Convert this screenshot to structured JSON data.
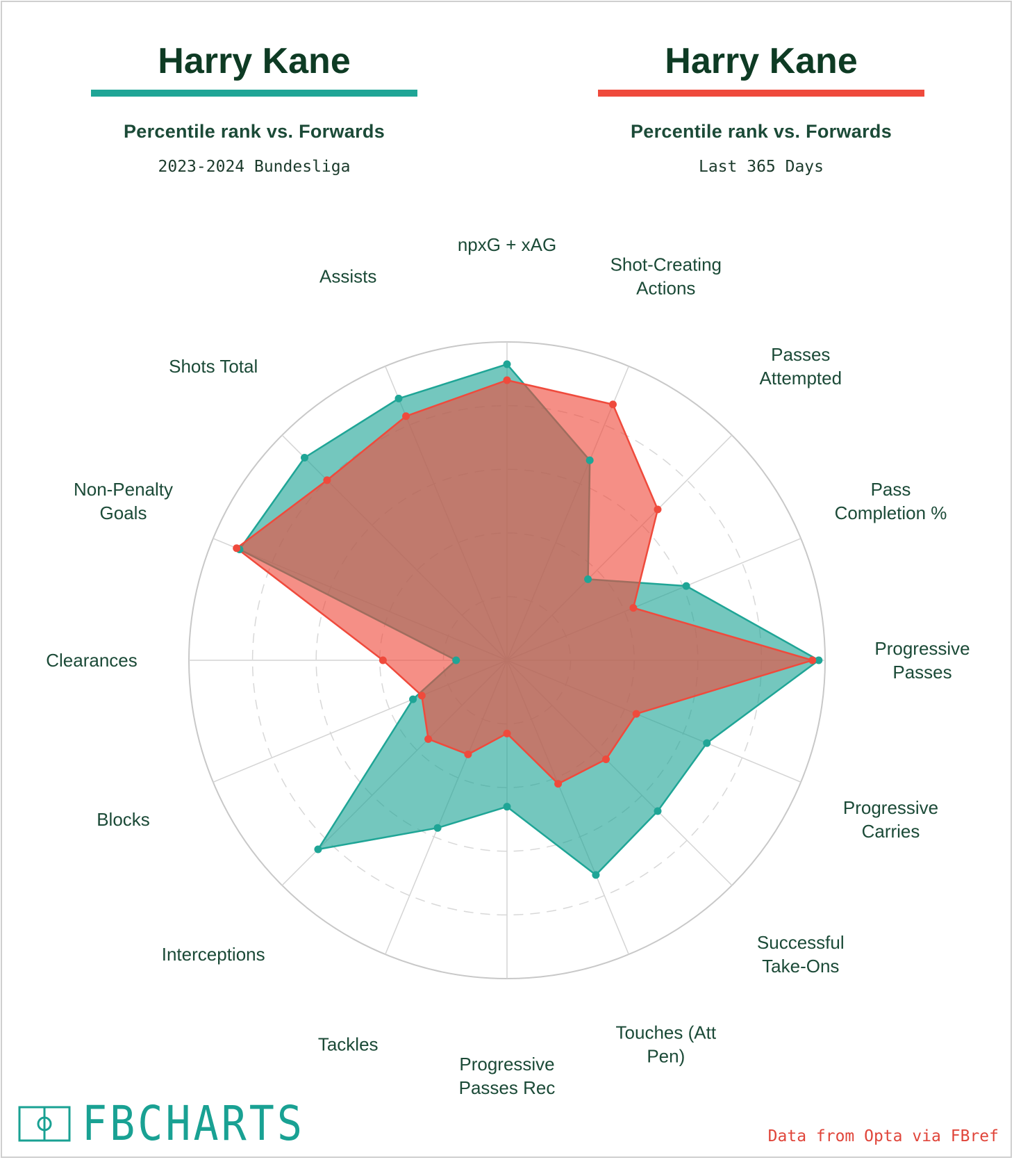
{
  "colors": {
    "series1": "#1fa596",
    "series2": "#ef4a3c",
    "title": "#0e3b24",
    "text": "#1b4a37",
    "credit": "#e0453a",
    "logo": "#19a193"
  },
  "header_left": {
    "player": "Harry Kane",
    "subtitle": "Percentile rank vs. Forwards",
    "context": "2023-2024 Bundesliga"
  },
  "header_right": {
    "player": "Harry Kane",
    "subtitle": "Percentile rank vs. Forwards",
    "context": "Last 365 Days"
  },
  "footer": {
    "logo_text": "FBCHARTS",
    "logo_icon": "pitch-icon",
    "credit": "Data from Opta via FBref"
  },
  "chart_data": {
    "type": "radar",
    "categories": [
      "npxG + xAG",
      "Shot-Creating Actions",
      "Passes Attempted",
      "Pass Completion %",
      "Progressive Passes",
      "Progressive Carries",
      "Successful Take-Ons",
      "Touches (Att Pen)",
      "Progressive Passes Rec",
      "Tackles",
      "Interceptions",
      "Blocks",
      "Clearances",
      "Non-Penalty Goals",
      "Shots Total",
      "Assists"
    ],
    "category_lines": [
      [
        "npxG + xAG"
      ],
      [
        "Shot-Creating",
        "Actions"
      ],
      [
        "Passes",
        "Attempted"
      ],
      [
        "Pass",
        "Completion %"
      ],
      [
        "Progressive",
        "Passes"
      ],
      [
        "Progressive",
        "Carries"
      ],
      [
        "Successful",
        "Take-Ons"
      ],
      [
        "Touches (Att",
        "Pen)"
      ],
      [
        "Progressive",
        "Passes Rec"
      ],
      [
        "Tackles"
      ],
      [
        "Interceptions"
      ],
      [
        "Blocks"
      ],
      [
        "Clearances"
      ],
      [
        "Non-Penalty",
        "Goals"
      ],
      [
        "Shots Total"
      ],
      [
        "Assists"
      ]
    ],
    "series": [
      {
        "values": [
          93,
          68,
          36,
          61,
          98,
          68,
          67,
          73,
          46,
          57,
          84,
          32,
          16,
          91,
          90,
          89
        ]
      },
      {
        "values": [
          88,
          87,
          67,
          43,
          96,
          44,
          44,
          42,
          23,
          32,
          35,
          29,
          39,
          92,
          80,
          83
        ]
      }
    ],
    "ylim": [
      0,
      100
    ],
    "gridlines": [
      20,
      40,
      60,
      80,
      100
    ]
  }
}
